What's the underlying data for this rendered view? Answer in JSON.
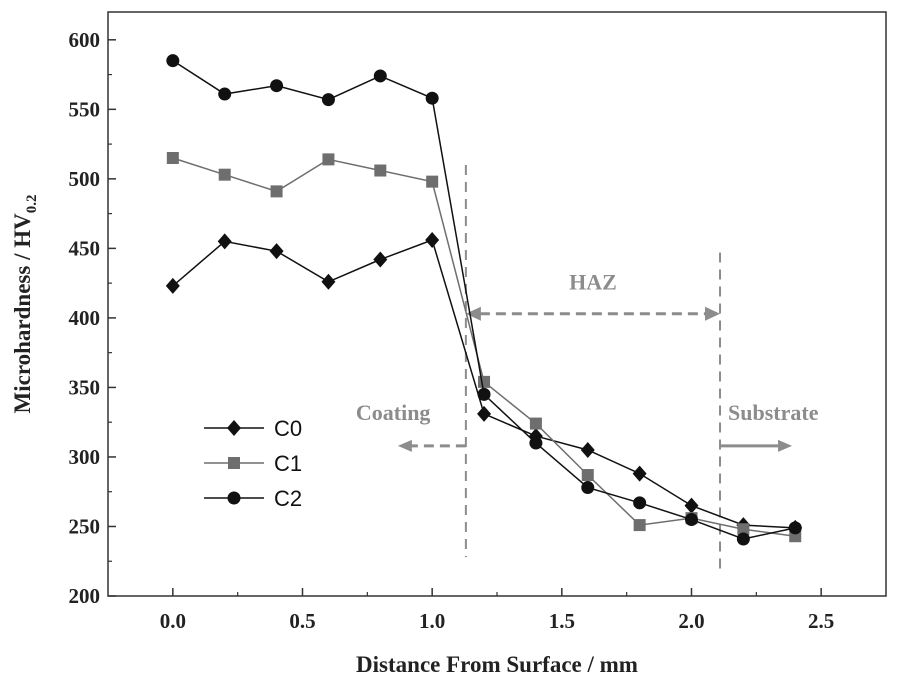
{
  "chart_data": {
    "type": "line",
    "xlabel": "Distance From Surface / mm",
    "ylabel": "Microhardness / HV",
    "ylabel_subscript": "0.2",
    "xlim": [
      -0.25,
      2.75
    ],
    "ylim": [
      200,
      620
    ],
    "xticks": [
      0.0,
      0.5,
      1.0,
      1.5,
      2.0,
      2.5
    ],
    "xtick_labels": [
      "0.0",
      "0.5",
      "1.0",
      "1.5",
      "2.0",
      "2.5"
    ],
    "yticks": [
      200,
      250,
      300,
      350,
      400,
      450,
      500,
      550,
      600
    ],
    "ytick_labels": [
      "200",
      "250",
      "300",
      "350",
      "400",
      "450",
      "500",
      "550",
      "600"
    ],
    "grid": false,
    "legend_position": "left",
    "series": [
      {
        "name": "C0",
        "marker": "diamond",
        "color": "#111111",
        "x": [
          0.0,
          0.2,
          0.4,
          0.6,
          0.8,
          1.0,
          1.2,
          1.4,
          1.6,
          1.8,
          2.0,
          2.2,
          2.4
        ],
        "y": [
          423,
          455,
          448,
          426,
          442,
          456,
          331,
          315,
          305,
          288,
          265,
          251,
          249
        ]
      },
      {
        "name": "C1",
        "marker": "square",
        "color": "#6e6e6e",
        "x": [
          0.0,
          0.2,
          0.4,
          0.6,
          0.8,
          1.0,
          1.2,
          1.4,
          1.6,
          1.8,
          2.0,
          2.2,
          2.4
        ],
        "y": [
          515,
          503,
          491,
          514,
          506,
          498,
          354,
          324,
          287,
          251,
          256,
          248,
          243
        ]
      },
      {
        "name": "C2",
        "marker": "circle",
        "color": "#111111",
        "x": [
          0.0,
          0.2,
          0.4,
          0.6,
          0.8,
          1.0,
          1.2,
          1.4,
          1.6,
          1.8,
          2.0,
          2.2,
          2.4
        ],
        "y": [
          585,
          561,
          567,
          557,
          574,
          558,
          345,
          310,
          278,
          267,
          255,
          241,
          249
        ]
      }
    ],
    "annotations": {
      "zone_lines_x": [
        1.13,
        2.11
      ],
      "haz_label": "HAZ",
      "haz_arrow_y": 403,
      "coating_label": "Coating",
      "coating_arrow_y": 308,
      "substrate_label": "Substrate",
      "substrate_arrow_y": 308,
      "annotation_color": "#8c8c8c"
    }
  }
}
